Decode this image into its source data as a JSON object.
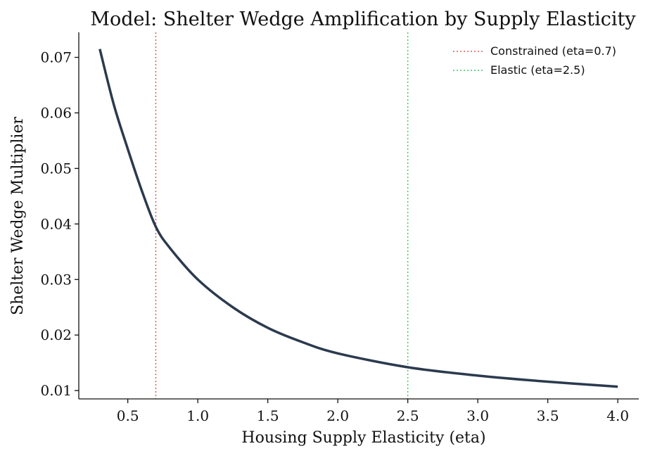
{
  "chart_data": {
    "type": "line",
    "title": "Model: Shelter Wedge Amplification by Supply Elasticity",
    "xlabel": "Housing Supply Elasticity (eta)",
    "ylabel": "Shelter Wedge Multiplier",
    "xlim": [
      0.15,
      4.15
    ],
    "ylim": [
      0.0085,
      0.0745
    ],
    "xticks": [
      {
        "value": 0.5,
        "label": "0.5"
      },
      {
        "value": 1.0,
        "label": "1.0"
      },
      {
        "value": 1.5,
        "label": "1.5"
      },
      {
        "value": 2.0,
        "label": "2.0"
      },
      {
        "value": 2.5,
        "label": "2.5"
      },
      {
        "value": 3.0,
        "label": "3.0"
      },
      {
        "value": 3.5,
        "label": "3.5"
      },
      {
        "value": 4.0,
        "label": "4.0"
      }
    ],
    "yticks": [
      {
        "value": 0.01,
        "label": "0.01"
      },
      {
        "value": 0.02,
        "label": "0.02"
      },
      {
        "value": 0.03,
        "label": "0.03"
      },
      {
        "value": 0.04,
        "label": "0.04"
      },
      {
        "value": 0.05,
        "label": "0.05"
      },
      {
        "value": 0.06,
        "label": "0.06"
      },
      {
        "value": 0.07,
        "label": "0.07"
      }
    ],
    "grid": false,
    "legend_position": "top-right",
    "series": [
      {
        "color": "#2b3a4e",
        "x": [
          0.3,
          0.4,
          0.5,
          0.6,
          0.7,
          0.8,
          1.0,
          1.25,
          1.5,
          1.75,
          2.0,
          2.5,
          3.0,
          3.5,
          4.0
        ],
        "y": [
          0.0715,
          0.0615,
          0.0535,
          0.046,
          0.0395,
          0.0357,
          0.03,
          0.025,
          0.0213,
          0.0187,
          0.0167,
          0.0142,
          0.0127,
          0.0116,
          0.0107
        ]
      }
    ],
    "reference_lines": [
      {
        "name": "Constrained (eta=0.7)",
        "x": 0.7,
        "color": "#e05a5a",
        "style": "dotted"
      },
      {
        "name": "Elastic (eta=2.5)",
        "x": 2.5,
        "color": "#3ec96b",
        "style": "dotted"
      }
    ]
  }
}
